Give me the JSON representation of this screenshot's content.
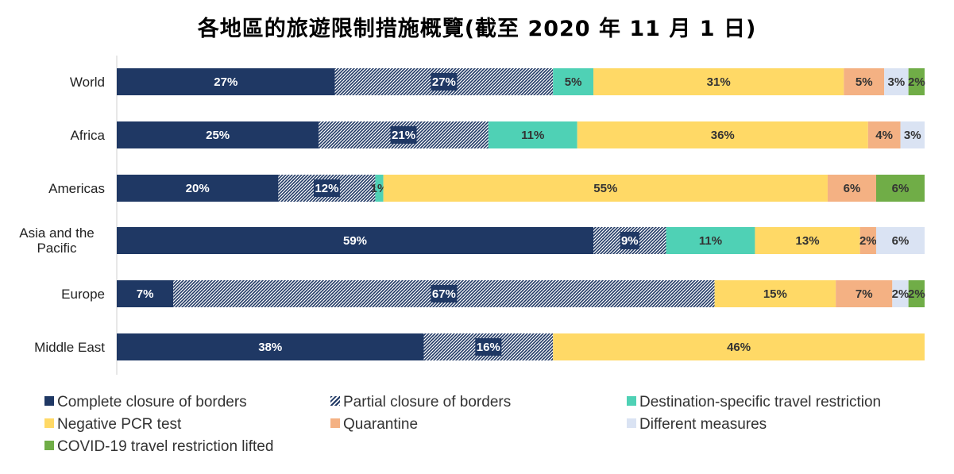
{
  "title": "各地區的旅遊限制措施概覽(截至 2020 年 11 月 1 日)",
  "chart_data": {
    "type": "bar",
    "orientation": "horizontal",
    "stacked": true,
    "normalized_percent": true,
    "categories": [
      "World",
      "Africa",
      "Americas",
      "Asia and the Pacific",
      "Europe",
      "Middle East"
    ],
    "series": [
      {
        "name": "Complete closure of borders",
        "color": "#1f3864",
        "pattern": "solid",
        "values": [
          27,
          25,
          20,
          59,
          7,
          38
        ],
        "labels": [
          "27%",
          "25%",
          "20%",
          "59%",
          "7%",
          "38%"
        ]
      },
      {
        "name": "Partial closure of borders",
        "color": "#1f3864",
        "pattern": "hatched",
        "values": [
          27,
          21,
          12,
          9,
          67,
          16
        ],
        "labels": [
          "27%",
          "21%",
          "12%",
          "9%",
          "67%",
          "16%"
        ]
      },
      {
        "name": "Destination-specific travel restriction",
        "color": "#4fd1b5",
        "pattern": "solid",
        "values": [
          5,
          11,
          1,
          11,
          0,
          0
        ],
        "labels": [
          "5%",
          "11%",
          "1%",
          "11%",
          "",
          ""
        ]
      },
      {
        "name": "Negative PCR test",
        "color": "#ffd966",
        "pattern": "solid",
        "values": [
          31,
          36,
          55,
          13,
          15,
          46
        ],
        "labels": [
          "31%",
          "36%",
          "55%",
          "13%",
          "15%",
          "46%"
        ]
      },
      {
        "name": "Quarantine",
        "color": "#f4b183",
        "pattern": "solid",
        "values": [
          5,
          4,
          6,
          2,
          7,
          0
        ],
        "labels": [
          "5%",
          "4%",
          "6%",
          "2%",
          "7%",
          ""
        ]
      },
      {
        "name": "Different measures",
        "color": "#dae3f3",
        "pattern": "solid",
        "values": [
          3,
          3,
          0,
          6,
          2,
          0
        ],
        "labels": [
          "3%",
          "3%",
          "",
          "6%",
          "2%",
          ""
        ]
      },
      {
        "name": "COVID-19 travel restriction lifted",
        "color": "#70ad47",
        "pattern": "solid",
        "values": [
          2,
          0,
          6,
          0,
          2,
          0
        ],
        "labels": [
          "2%",
          "",
          "6%",
          "",
          "2%",
          ""
        ]
      }
    ],
    "xlim": [
      0,
      100
    ],
    "legend_position": "bottom",
    "grid": false
  }
}
